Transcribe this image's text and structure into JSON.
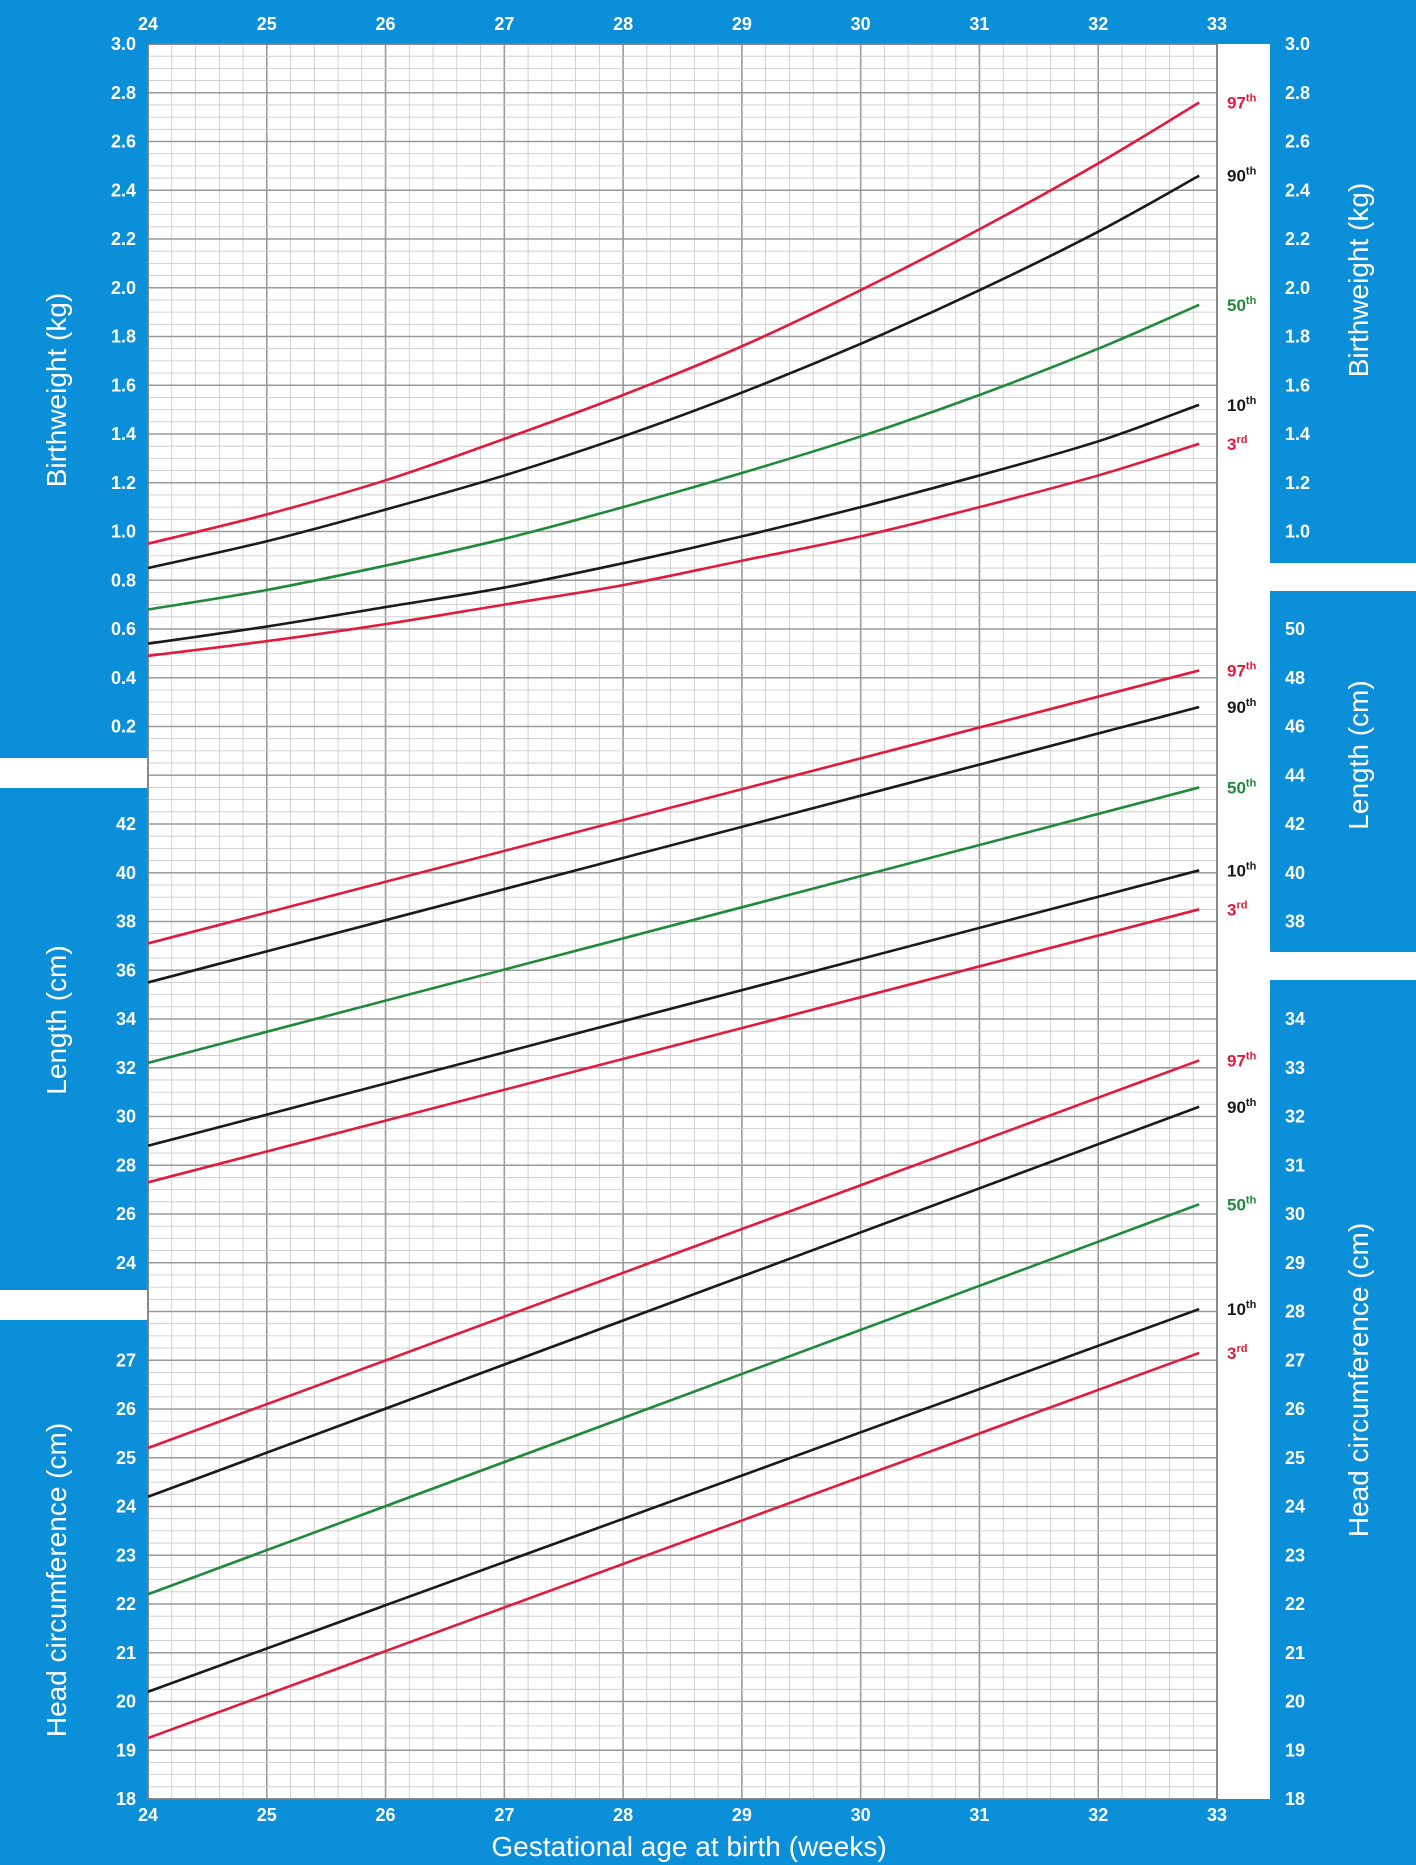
{
  "chart_data": {
    "type": "line",
    "x_axis": {
      "title": "Gestational age at birth (weeks)",
      "range": [
        24,
        33
      ],
      "ticks": [
        "24",
        "25",
        "26",
        "27",
        "28",
        "29",
        "30",
        "31",
        "32",
        "33"
      ]
    },
    "colors": {
      "frame": "#0a8fd8",
      "red": "#e01b3c",
      "black": "#1a1a1a",
      "green": "#1f8a3c",
      "grid_major": "#9a9a9a",
      "grid_minor": "#c8c8c8"
    },
    "panels": [
      {
        "id": "birthweight",
        "y_title_left": "Birthweight (kg)",
        "y_title_right": "Birthweight (kg)",
        "left_ticks": [
          "3.0",
          "2.8",
          "2.6",
          "2.4",
          "2.2",
          "2.0",
          "1.8",
          "1.6",
          "1.4",
          "1.2",
          "1.0",
          "0.8",
          "0.6",
          "0.4",
          "0.2"
        ],
        "right_ticks": [
          "3.0",
          "2.8",
          "2.6",
          "2.4",
          "2.2",
          "2.0",
          "1.8",
          "1.6",
          "1.4",
          "1.2",
          "1.0"
        ],
        "series": [
          {
            "name": "97th",
            "label": "97",
            "suffix": "th",
            "color": "red",
            "x": [
              24,
              25,
              26,
              27,
              28,
              29,
              30,
              31,
              32,
              32.85
            ],
            "y": [
              0.95,
              1.07,
              1.21,
              1.38,
              1.56,
              1.76,
              1.99,
              2.24,
              2.51,
              2.76
            ]
          },
          {
            "name": "90th",
            "label": "90",
            "suffix": "th",
            "color": "black",
            "x": [
              24,
              25,
              26,
              27,
              28,
              29,
              30,
              31,
              32,
              32.85
            ],
            "y": [
              0.85,
              0.96,
              1.09,
              1.23,
              1.39,
              1.57,
              1.77,
              1.99,
              2.23,
              2.46
            ]
          },
          {
            "name": "50th",
            "label": "50",
            "suffix": "th",
            "color": "green",
            "x": [
              24,
              25,
              26,
              27,
              28,
              29,
              30,
              31,
              32,
              32.85
            ],
            "y": [
              0.68,
              0.76,
              0.86,
              0.97,
              1.1,
              1.24,
              1.39,
              1.56,
              1.75,
              1.93
            ]
          },
          {
            "name": "10th",
            "label": "10",
            "suffix": "th",
            "color": "black",
            "x": [
              24,
              25,
              26,
              27,
              28,
              29,
              30,
              31,
              32,
              32.85
            ],
            "y": [
              0.54,
              0.61,
              0.69,
              0.77,
              0.87,
              0.98,
              1.1,
              1.23,
              1.37,
              1.52
            ]
          },
          {
            "name": "3rd",
            "label": "3",
            "suffix": "rd",
            "color": "red",
            "x": [
              24,
              25,
              26,
              27,
              28,
              29,
              30,
              31,
              32,
              32.85
            ],
            "y": [
              0.49,
              0.55,
              0.62,
              0.7,
              0.78,
              0.88,
              0.98,
              1.1,
              1.23,
              1.36
            ]
          }
        ]
      },
      {
        "id": "length",
        "y_title_left": "Length (cm)",
        "y_title_right": "Length (cm)",
        "left_ticks": [
          "42",
          "40",
          "38",
          "36",
          "34",
          "32",
          "30",
          "28",
          "26",
          "24"
        ],
        "right_ticks": [
          "50",
          "48",
          "46",
          "44",
          "42",
          "40",
          "38"
        ],
        "series": [
          {
            "name": "97th",
            "label": "97",
            "suffix": "th",
            "color": "red",
            "x": [
              24,
              32.85
            ],
            "y": [
              37.1,
              48.3
            ]
          },
          {
            "name": "90th",
            "label": "90",
            "suffix": "th",
            "color": "black",
            "x": [
              24,
              32.85
            ],
            "y": [
              35.5,
              46.8
            ]
          },
          {
            "name": "50th",
            "label": "50",
            "suffix": "th",
            "color": "green",
            "x": [
              24,
              32.85
            ],
            "y": [
              32.2,
              43.5
            ]
          },
          {
            "name": "10th",
            "label": "10",
            "suffix": "th",
            "color": "black",
            "x": [
              24,
              32.85
            ],
            "y": [
              28.8,
              40.1
            ]
          },
          {
            "name": "3rd",
            "label": "3",
            "suffix": "rd",
            "color": "red",
            "x": [
              24,
              32.85
            ],
            "y": [
              27.3,
              38.5
            ]
          }
        ]
      },
      {
        "id": "head_circumference",
        "y_title_left": "Head circumference (cm)",
        "y_title_right": "Head circumference (cm)",
        "left_ticks": [
          "27",
          "26",
          "25",
          "24",
          "23",
          "22",
          "21",
          "20",
          "19",
          "18"
        ],
        "right_ticks": [
          "34",
          "33",
          "32",
          "31",
          "30",
          "29",
          "28",
          "27",
          "26",
          "25",
          "24",
          "23",
          "22",
          "21",
          "20",
          "19",
          "18"
        ],
        "series": [
          {
            "name": "97th",
            "label": "97",
            "suffix": "th",
            "color": "red",
            "x": [
              24,
              32.85
            ],
            "y": [
              25.2,
              33.15
            ]
          },
          {
            "name": "90th",
            "label": "90",
            "suffix": "th",
            "color": "black",
            "x": [
              24,
              32.85
            ],
            "y": [
              24.2,
              32.2
            ]
          },
          {
            "name": "50th",
            "label": "50",
            "suffix": "th",
            "color": "green",
            "x": [
              24,
              32.85
            ],
            "y": [
              22.2,
              30.2
            ]
          },
          {
            "name": "10th",
            "label": "10",
            "suffix": "th",
            "color": "black",
            "x": [
              24,
              32.85
            ],
            "y": [
              20.2,
              28.05
            ]
          },
          {
            "name": "3rd",
            "label": "3",
            "suffix": "rd",
            "color": "red",
            "x": [
              24,
              32.85
            ],
            "y": [
              19.25,
              27.15
            ]
          }
        ]
      }
    ]
  }
}
